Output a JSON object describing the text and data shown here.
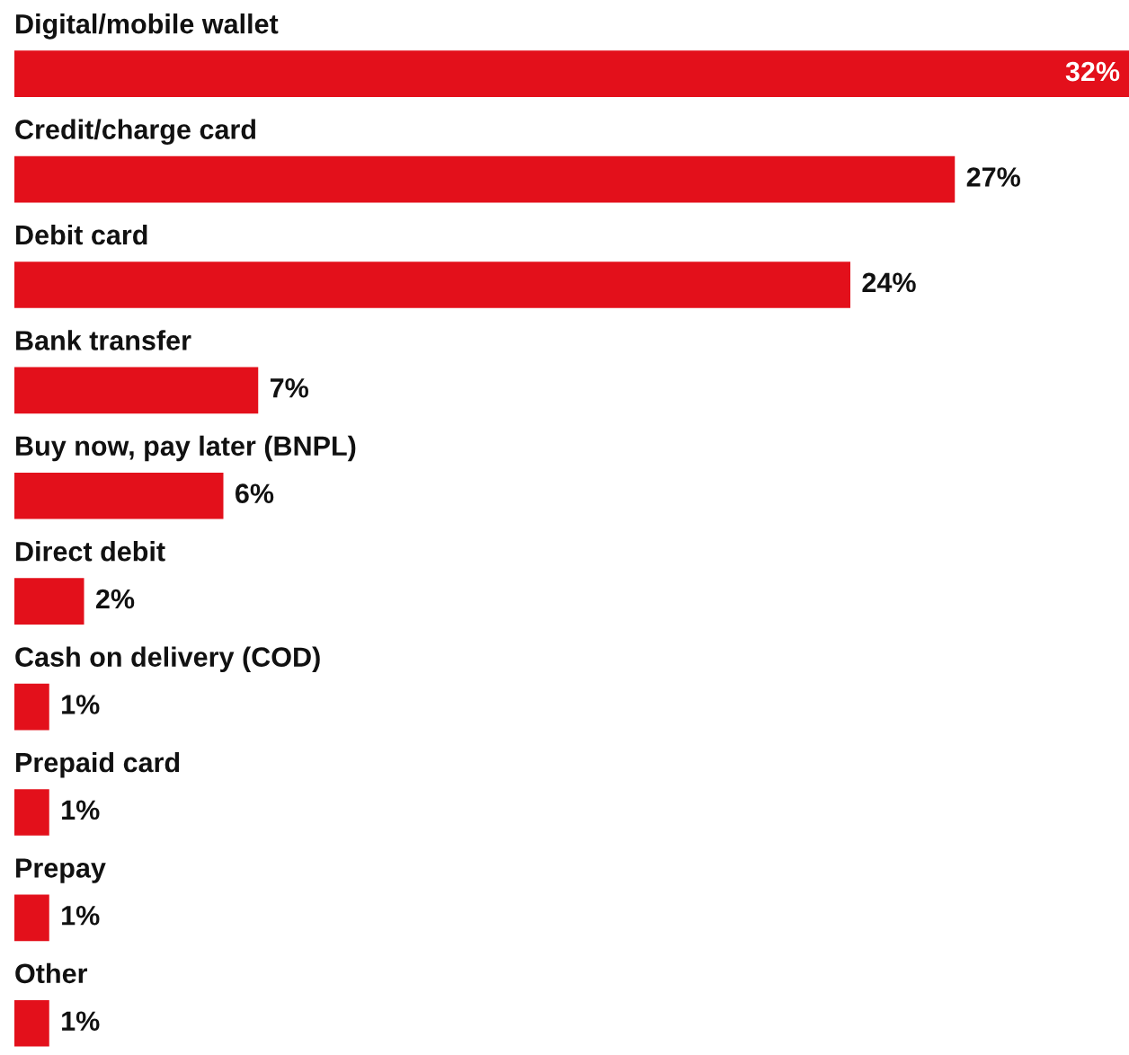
{
  "chart_data": {
    "type": "bar",
    "orientation": "horizontal",
    "categories": [
      "Digital/mobile wallet",
      "Credit/charge card",
      "Debit card",
      "Bank transfer",
      "Buy now, pay later (BNPL)",
      "Direct debit",
      "Cash on delivery (COD)",
      "Prepaid card",
      "Prepay",
      "Other"
    ],
    "values": [
      32,
      27,
      24,
      7,
      6,
      2,
      1,
      1,
      1,
      1
    ],
    "value_labels": [
      "32%",
      "27%",
      "24%",
      "7%",
      "6%",
      "2%",
      "1%",
      "1%",
      "1%",
      "1%"
    ],
    "color": "#e3101b"
  }
}
